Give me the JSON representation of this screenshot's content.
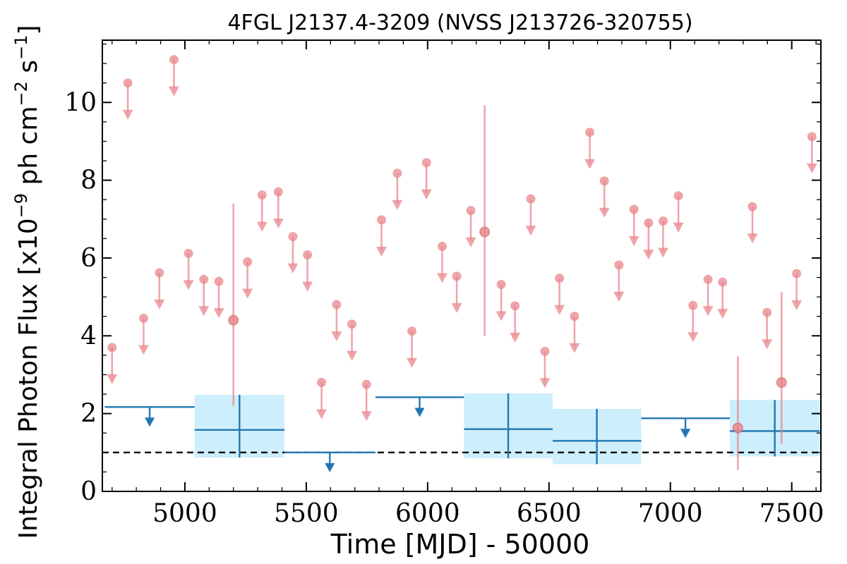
{
  "chart_data": {
    "type": "scatter",
    "title": "4FGL J2137.4-3209 (NVSS J213726-320755)",
    "xlabel": "Time [MJD] - 50000",
    "ylabel": "Integral Photon Flux [x10",
    "ylabel_exp": "−9",
    "ylabel_unit_ph": " ph cm",
    "ylabel_unit_cm_exp": "−2",
    "ylabel_unit_s": " s",
    "ylabel_unit_s_exp": "−1",
    "ylabel_close": "]",
    "xlim": [
      4660,
      7620
    ],
    "ylim": [
      0,
      11.6
    ],
    "xticks": [
      5000,
      5500,
      6000,
      6500,
      7000,
      7500
    ],
    "yticks": [
      0,
      2,
      4,
      6,
      8,
      10
    ],
    "reference_line": 1.0,
    "colors": {
      "short_bin": "#e8868b",
      "long_bin": "#1f77b4",
      "long_bin_fill": "#cdeefc",
      "reference": "#000000"
    },
    "short_bins_upper_limits": [
      {
        "x": 4700,
        "y": 3.7
      },
      {
        "x": 4765,
        "y": 10.5
      },
      {
        "x": 4830,
        "y": 4.45
      },
      {
        "x": 4895,
        "y": 5.62
      },
      {
        "x": 4955,
        "y": 11.1
      },
      {
        "x": 5015,
        "y": 6.12
      },
      {
        "x": 5078,
        "y": 5.45
      },
      {
        "x": 5140,
        "y": 5.4
      },
      {
        "x": 5258,
        "y": 5.9
      },
      {
        "x": 5318,
        "y": 7.62
      },
      {
        "x": 5385,
        "y": 7.7
      },
      {
        "x": 5445,
        "y": 6.55
      },
      {
        "x": 5505,
        "y": 6.08
      },
      {
        "x": 5563,
        "y": 2.8
      },
      {
        "x": 5625,
        "y": 4.8
      },
      {
        "x": 5688,
        "y": 4.3
      },
      {
        "x": 5748,
        "y": 2.75
      },
      {
        "x": 5810,
        "y": 6.98
      },
      {
        "x": 5875,
        "y": 8.18
      },
      {
        "x": 5935,
        "y": 4.12
      },
      {
        "x": 5995,
        "y": 8.45
      },
      {
        "x": 6060,
        "y": 6.3
      },
      {
        "x": 6120,
        "y": 5.53
      },
      {
        "x": 6178,
        "y": 7.22
      },
      {
        "x": 6303,
        "y": 5.32
      },
      {
        "x": 6360,
        "y": 4.77
      },
      {
        "x": 6425,
        "y": 7.52
      },
      {
        "x": 6483,
        "y": 3.6
      },
      {
        "x": 6543,
        "y": 5.48
      },
      {
        "x": 6605,
        "y": 4.5
      },
      {
        "x": 6668,
        "y": 9.23
      },
      {
        "x": 6728,
        "y": 7.98
      },
      {
        "x": 6788,
        "y": 5.82
      },
      {
        "x": 6850,
        "y": 7.25
      },
      {
        "x": 6910,
        "y": 6.9
      },
      {
        "x": 6970,
        "y": 6.95
      },
      {
        "x": 7033,
        "y": 7.6
      },
      {
        "x": 7093,
        "y": 4.78
      },
      {
        "x": 7155,
        "y": 5.45
      },
      {
        "x": 7215,
        "y": 5.38
      },
      {
        "x": 7338,
        "y": 7.32
      },
      {
        "x": 7398,
        "y": 4.6
      },
      {
        "x": 7520,
        "y": 5.6
      },
      {
        "x": 7583,
        "y": 9.12
      }
    ],
    "short_bins_detections": [
      {
        "x": 5200,
        "y": 4.4,
        "ylo": 2.2,
        "yhi": 7.4
      },
      {
        "x": 6235,
        "y": 6.67,
        "ylo": 4.0,
        "yhi": 9.93
      },
      {
        "x": 7278,
        "y": 1.63,
        "ylo": 0.55,
        "yhi": 3.47
      },
      {
        "x": 7458,
        "y": 2.8,
        "ylo": 1.22,
        "yhi": 5.12
      }
    ],
    "long_bins_upper_limits": [
      {
        "x0": 4670,
        "x1": 5040,
        "y": 2.17,
        "xc": 4855
      },
      {
        "x0": 5410,
        "x1": 5785,
        "y": 1.0,
        "xc": 5597
      },
      {
        "x0": 5785,
        "x1": 6150,
        "y": 2.42,
        "xc": 5967
      },
      {
        "x0": 6880,
        "x1": 7245,
        "y": 1.88,
        "xc": 7062
      }
    ],
    "long_bins_detections": [
      {
        "x0": 5040,
        "x1": 5410,
        "y": 1.58,
        "ylo": 0.87,
        "yhi": 2.48,
        "xc": 5225
      },
      {
        "x0": 6150,
        "x1": 6515,
        "y": 1.6,
        "ylo": 0.85,
        "yhi": 2.52,
        "xc": 6332
      },
      {
        "x0": 6515,
        "x1": 6880,
        "y": 1.3,
        "ylo": 0.7,
        "yhi": 2.12,
        "xc": 6697
      },
      {
        "x0": 7245,
        "x1": 7615,
        "y": 1.55,
        "ylo": 0.9,
        "yhi": 2.35,
        "xc": 7430
      }
    ]
  }
}
